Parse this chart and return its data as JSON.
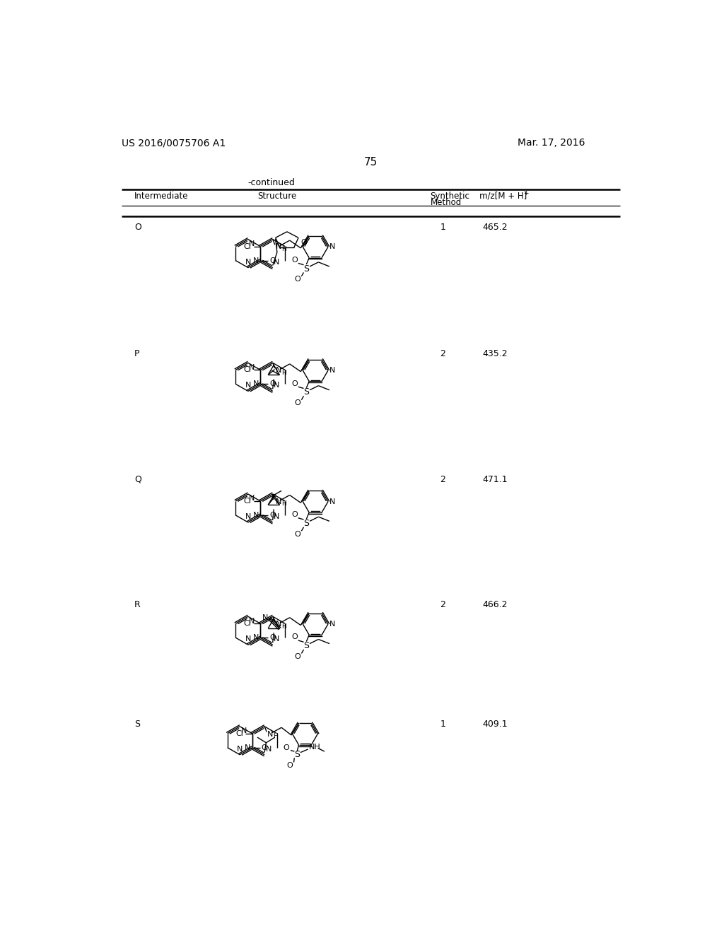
{
  "page_number": "75",
  "patent_number": "US 2016/0075706 A1",
  "patent_date": "Mar. 17, 2016",
  "continued_text": "-continued",
  "col1": "Intermediate",
  "col2": "Structure",
  "col3a": "Synthetic",
  "col3b": "Method",
  "col4": "m/z[M + H]",
  "col4sup": "+",
  "rows": [
    {
      "id": "O",
      "method": "1",
      "mz": "465.2"
    },
    {
      "id": "P",
      "method": "2",
      "mz": "435.2"
    },
    {
      "id": "Q",
      "method": "2",
      "mz": "471.1"
    },
    {
      "id": "R",
      "method": "2",
      "mz": "466.2"
    },
    {
      "id": "S",
      "method": "1",
      "mz": "409.1"
    }
  ]
}
